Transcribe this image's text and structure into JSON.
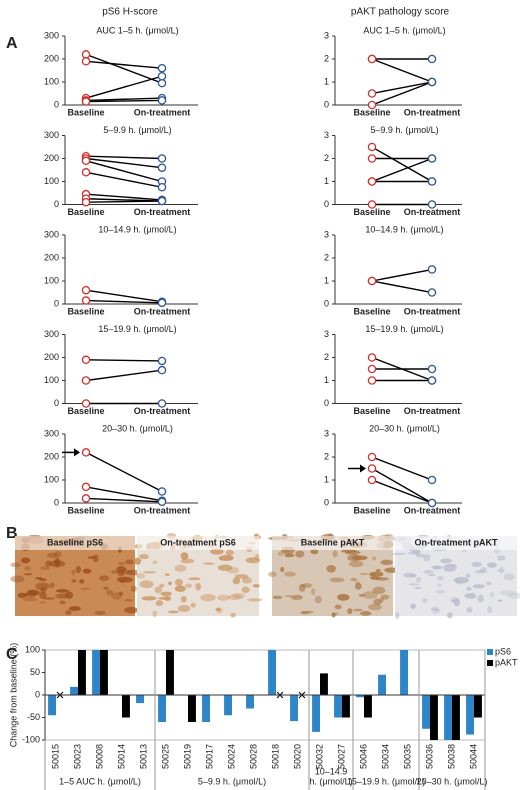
{
  "panel_labels": [
    "A",
    "B",
    "C"
  ],
  "column_titles": [
    "pS6 H-score",
    "pAKT pathology score"
  ],
  "images": [
    "Baseline pS6",
    "On-treatment pS6",
    "Baseline pAKT",
    "On-treatment pAKT"
  ],
  "chart_data": [
    {
      "type": "paired",
      "title": "AUC 1–5 h. (μmol/L)",
      "categories": [
        "Baseline",
        "On-treatment"
      ],
      "pairs": [
        [
          220,
          95
        ],
        [
          190,
          160
        ],
        [
          30,
          125
        ],
        [
          20,
          30
        ],
        [
          15,
          20
        ]
      ],
      "marker_colors": [
        "#d0312d",
        "#2f5597"
      ],
      "ylim": [
        0,
        300
      ],
      "yticks": [
        0,
        100,
        200,
        300
      ]
    },
    {
      "type": "paired",
      "title": "5–9.9 h. (μmol/L)",
      "categories": [
        "Baseline",
        "On-treatment"
      ],
      "pairs": [
        [
          210,
          200
        ],
        [
          200,
          160
        ],
        [
          190,
          100
        ],
        [
          140,
          75
        ],
        [
          45,
          20
        ],
        [
          25,
          15
        ],
        [
          10,
          15
        ]
      ],
      "marker_colors": [
        "#d0312d",
        "#2f5597"
      ],
      "ylim": [
        0,
        300
      ],
      "yticks": [
        0,
        100,
        200,
        300
      ]
    },
    {
      "type": "paired",
      "title": "10–14.9 h. (μmol/L)",
      "categories": [
        "Baseline",
        "On-treatment"
      ],
      "pairs": [
        [
          60,
          10
        ],
        [
          15,
          5
        ]
      ],
      "marker_colors": [
        "#d0312d",
        "#2f5597"
      ],
      "ylim": [
        0,
        300
      ],
      "yticks": [
        0,
        100,
        200,
        300
      ]
    },
    {
      "type": "paired",
      "title": "15–19.9 h. (μmol/L)",
      "categories": [
        "Baseline",
        "On-treatment"
      ],
      "pairs": [
        [
          190,
          185
        ],
        [
          100,
          145
        ],
        [
          0,
          0
        ]
      ],
      "marker_colors": [
        "#d0312d",
        "#2f5597"
      ],
      "ylim": [
        0,
        300
      ],
      "yticks": [
        0,
        100,
        200,
        300
      ]
    },
    {
      "type": "paired",
      "title": "20–30 h. (μmol/L)",
      "categories": [
        "Baseline",
        "On-treatment"
      ],
      "pairs": [
        [
          220,
          50
        ],
        [
          70,
          10
        ],
        [
          20,
          5
        ]
      ],
      "marker_colors": [
        "#d0312d",
        "#2f5597"
      ],
      "ylim": [
        0,
        300
      ],
      "yticks": [
        0,
        100,
        200,
        300
      ],
      "arrow": 0
    },
    {
      "type": "paired",
      "title": "AUC 1–5 h. (μmol/L)",
      "categories": [
        "Baseline",
        "On-treatment"
      ],
      "pairs": [
        [
          2,
          2
        ],
        [
          2,
          1
        ],
        [
          0.5,
          1
        ],
        [
          0,
          1
        ]
      ],
      "marker_colors": [
        "#d0312d",
        "#2f5597"
      ],
      "ylim": [
        0,
        3
      ],
      "yticks": [
        0,
        1,
        2,
        3
      ]
    },
    {
      "type": "paired",
      "title": "5–9.9 h. (μmol/L)",
      "categories": [
        "Baseline",
        "On-treatment"
      ],
      "pairs": [
        [
          2.5,
          1
        ],
        [
          2,
          2
        ],
        [
          1,
          2
        ],
        [
          1,
          1
        ],
        [
          0,
          0
        ]
      ],
      "marker_colors": [
        "#d0312d",
        "#2f5597"
      ],
      "ylim": [
        0,
        3
      ],
      "yticks": [
        0,
        1,
        2,
        3
      ]
    },
    {
      "type": "paired",
      "title": "10–14.9 h. (μmol/L)",
      "categories": [
        "Baseline",
        "On-treatment"
      ],
      "pairs": [
        [
          1,
          1.5
        ],
        [
          1,
          0.5
        ]
      ],
      "marker_colors": [
        "#d0312d",
        "#2f5597"
      ],
      "ylim": [
        0,
        3
      ],
      "yticks": [
        0,
        1,
        2,
        3
      ]
    },
    {
      "type": "paired",
      "title": "15–19.9 h. (μmol/L)",
      "categories": [
        "Baseline",
        "On-treatment"
      ],
      "pairs": [
        [
          2,
          1
        ],
        [
          1.5,
          1.5
        ],
        [
          1,
          1
        ]
      ],
      "marker_colors": [
        "#d0312d",
        "#2f5597"
      ],
      "ylim": [
        0,
        3
      ],
      "yticks": [
        0,
        1,
        2,
        3
      ]
    },
    {
      "type": "paired",
      "title": "20–30 h. (μmol/L)",
      "categories": [
        "Baseline",
        "On-treatment"
      ],
      "pairs": [
        [
          2,
          1
        ],
        [
          1.5,
          0
        ],
        [
          1,
          0
        ]
      ],
      "marker_colors": [
        "#d0312d",
        "#2f5597"
      ],
      "ylim": [
        0,
        3
      ],
      "yticks": [
        0,
        1,
        2,
        3
      ],
      "arrow": 1
    },
    {
      "type": "bar",
      "y_label": "Change from baseline (%)",
      "categories": [
        "50015",
        "50023",
        "50008",
        "50014",
        "50013",
        "50025",
        "50019",
        "50017",
        "50024",
        "50028",
        "50018",
        "50020",
        "50032",
        "50027",
        "50046",
        "50034",
        "50035",
        "50036",
        "50038",
        "50044"
      ],
      "series": [
        {
          "name": "pS6",
          "color": "#2e86c8",
          "values": [
            -45,
            18,
            100,
            0,
            -18,
            -60,
            0,
            -60,
            -45,
            -30,
            100,
            -58,
            -82,
            -50,
            -5,
            45,
            100,
            -75,
            -100,
            -88
          ]
        },
        {
          "name": "pAKT",
          "color": "#000000",
          "values": [
            null,
            100,
            100,
            -50,
            0,
            100,
            -60,
            0,
            0,
            0,
            null,
            null,
            48,
            -50,
            -50,
            0,
            0,
            -100,
            -100,
            -50
          ]
        }
      ],
      "groups": [
        {
          "label": [
            "1–5 AUC h. (μmol/L)"
          ],
          "count": 5
        },
        {
          "label": [
            "5–9.9 h. (μmol/L)"
          ],
          "count": 7
        },
        {
          "label": [
            "10–14.9",
            "h. (μmol/L)"
          ],
          "count": 2
        },
        {
          "label": [
            "15–19.9 h. (μmol/L)"
          ],
          "count": 3
        },
        {
          "label": [
            "20–30 h. (μmol/L)"
          ],
          "count": 3
        }
      ],
      "ylim": [
        -100,
        100
      ],
      "yticks": [
        -100,
        -50,
        0,
        50,
        100
      ],
      "legend": "upper right"
    }
  ]
}
